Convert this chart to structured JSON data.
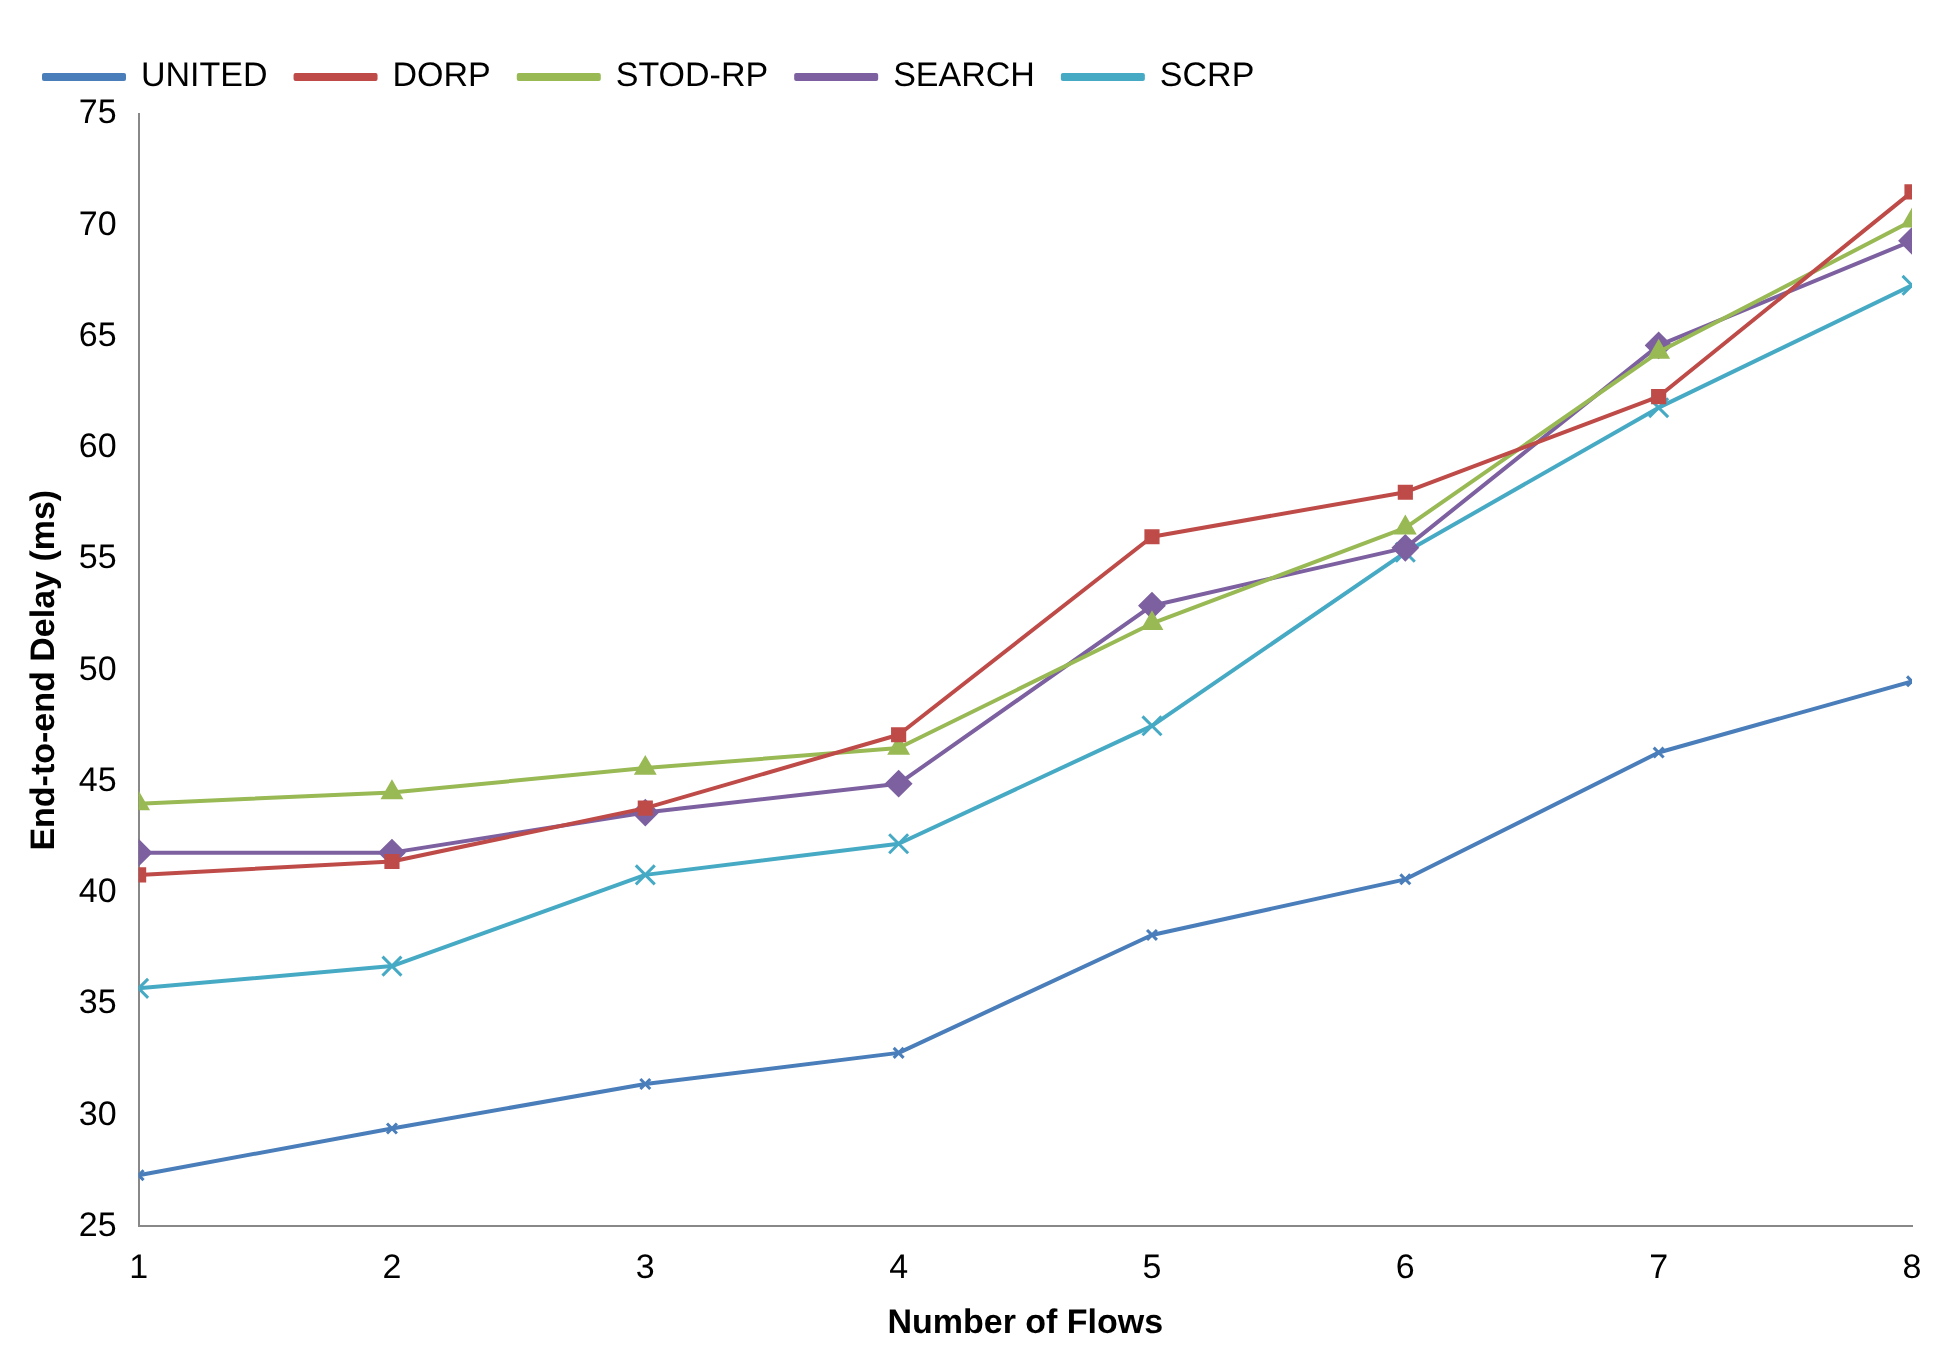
{
  "chart_data": {
    "type": "line",
    "xlabel": "Number of Flows",
    "ylabel": "End-to-end Delay (ms)",
    "x": [
      1,
      2,
      3,
      4,
      5,
      6,
      7,
      8
    ],
    "xlim": [
      1,
      8
    ],
    "xticks": [
      1,
      2,
      3,
      4,
      5,
      6,
      7,
      8
    ],
    "ylim": [
      25,
      75
    ],
    "yticks": [
      25,
      30,
      35,
      40,
      45,
      50,
      55,
      60,
      65,
      70,
      75
    ],
    "grid": false,
    "legend": "top left",
    "series": [
      {
        "name": "UNITED",
        "color": "#4a7ebb",
        "marker": "cross",
        "values": [
          27.3,
          29.4,
          31.4,
          32.8,
          38.1,
          40.6,
          46.3,
          49.5
        ]
      },
      {
        "name": "DORP",
        "color": "#be4b48",
        "marker": "square",
        "values": [
          40.8,
          41.4,
          43.8,
          47.1,
          56.0,
          58.0,
          62.3,
          71.5
        ]
      },
      {
        "name": "STOD-RP",
        "color": "#98b954",
        "marker": "triangle",
        "values": [
          44.0,
          44.5,
          45.6,
          46.5,
          52.1,
          56.4,
          64.3,
          70.2
        ]
      },
      {
        "name": "SEARCH",
        "color": "#7d60a0",
        "marker": "diamond",
        "values": [
          41.8,
          41.8,
          43.6,
          44.9,
          52.9,
          55.5,
          64.6,
          69.3
        ]
      },
      {
        "name": "SCRP",
        "color": "#46aac5",
        "marker": "cross",
        "values": [
          35.7,
          36.7,
          40.8,
          42.2,
          47.5,
          55.3,
          61.8,
          67.3
        ]
      }
    ]
  }
}
